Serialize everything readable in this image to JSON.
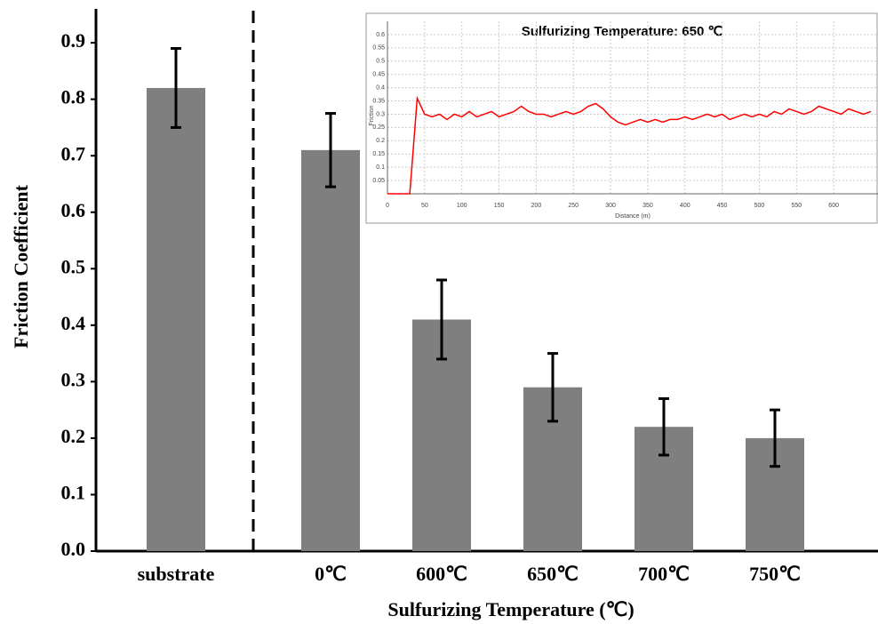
{
  "chart_data": [
    {
      "type": "bar",
      "x_label": "Sulfurizing Temperature (℃)",
      "y_label": "Friction Coefficient",
      "categories": [
        "substrate",
        "0℃",
        "600℃",
        "650℃",
        "700℃",
        "750℃"
      ],
      "values": [
        0.82,
        0.71,
        0.41,
        0.29,
        0.22,
        0.2
      ],
      "errors": [
        0.07,
        0.065,
        0.07,
        0.06,
        0.05,
        0.05
      ],
      "color": "#7f7f7f",
      "ylim": [
        0,
        0.96
      ],
      "yticks": [
        {
          "value": 0,
          "label": "0.0"
        },
        0.1,
        0.2,
        0.3,
        0.4,
        0.5,
        0.6,
        0.7,
        0.8,
        0.9
      ]
    },
    {
      "type": "line",
      "title": "Sulfurizing Temperature: 650 ℃",
      "x_label": "Distance (m)",
      "y_label": "Friction",
      "grid": true,
      "x": [
        0,
        10,
        20,
        30,
        40,
        50,
        60,
        70,
        80,
        90,
        100,
        110,
        120,
        130,
        140,
        150,
        160,
        170,
        180,
        190,
        200,
        210,
        220,
        230,
        240,
        250,
        260,
        270,
        280,
        290,
        300,
        310,
        320,
        330,
        340,
        350,
        360,
        370,
        380,
        390,
        400,
        410,
        420,
        430,
        440,
        450,
        460,
        470,
        480,
        490,
        500,
        510,
        520,
        530,
        540,
        550,
        560,
        570,
        580,
        590,
        600,
        610,
        620,
        630,
        640,
        650
      ],
      "series": [
        {
          "color": "#ff0000",
          "values": [
            0,
            0,
            0,
            0,
            0.36,
            0.3,
            0.29,
            0.3,
            0.28,
            0.3,
            0.29,
            0.31,
            0.29,
            0.3,
            0.31,
            0.29,
            0.3,
            0.31,
            0.33,
            0.31,
            0.3,
            0.3,
            0.29,
            0.3,
            0.31,
            0.3,
            0.31,
            0.33,
            0.34,
            0.32,
            0.29,
            0.27,
            0.26,
            0.27,
            0.28,
            0.27,
            0.28,
            0.27,
            0.28,
            0.28,
            0.29,
            0.28,
            0.29,
            0.3,
            0.29,
            0.3,
            0.28,
            0.29,
            0.3,
            0.29,
            0.3,
            0.29,
            0.31,
            0.3,
            0.32,
            0.31,
            0.3,
            0.31,
            0.33,
            0.32,
            0.31,
            0.3,
            0.32,
            0.31,
            0.3,
            0.31
          ]
        }
      ],
      "xlim": [
        0,
        650
      ],
      "xticks": [
        0,
        50,
        100,
        150,
        200,
        250,
        300,
        350,
        400,
        450,
        500,
        550,
        600
      ],
      "ylim": [
        0,
        0.65
      ],
      "yticks": [
        0.05,
        0.1,
        0.15,
        0.2,
        0.25,
        0.3,
        0.35,
        0.4,
        0.45,
        0.5,
        0.55,
        0.6
      ]
    }
  ]
}
